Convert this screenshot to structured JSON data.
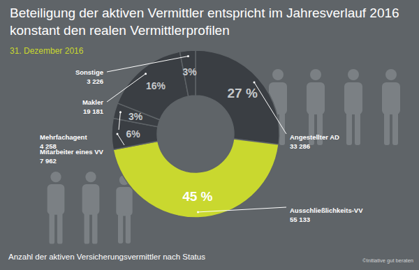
{
  "chart_data": {
    "type": "donut",
    "title": "Beteiligung der aktiven Vermittler entspricht im Jahresverlauf 2016 konstant den realen Vermittlerprofilen",
    "subtitle": "31. Dezember 2016",
    "footnote": "Anzahl der aktiven Versicherungsvermittler nach Status",
    "source": "©Initiative gut beraten",
    "categories": [
      "Angestellter AD",
      "Ausschließlichkeits-VV",
      "Mitarbeiter eines VV",
      "Mehrfachagent",
      "Makler",
      "Sonstige"
    ],
    "values": [
      27,
      45,
      6,
      3,
      16,
      3
    ],
    "value_labels": [
      "27 %",
      "45 %",
      "6%",
      "3%",
      "16%",
      "3%"
    ],
    "counts": [
      33286,
      55133,
      7962,
      4258,
      19181,
      3226
    ],
    "count_labels": [
      "33 286",
      "55 133",
      "7 962",
      "4 258",
      "19 181",
      "3 226"
    ],
    "colors": [
      "#3a3e43",
      "#c9d82f",
      "#3a3e43",
      "#3a3e43",
      "#3a3e43",
      "#3a3e43"
    ],
    "data_labels": true
  }
}
